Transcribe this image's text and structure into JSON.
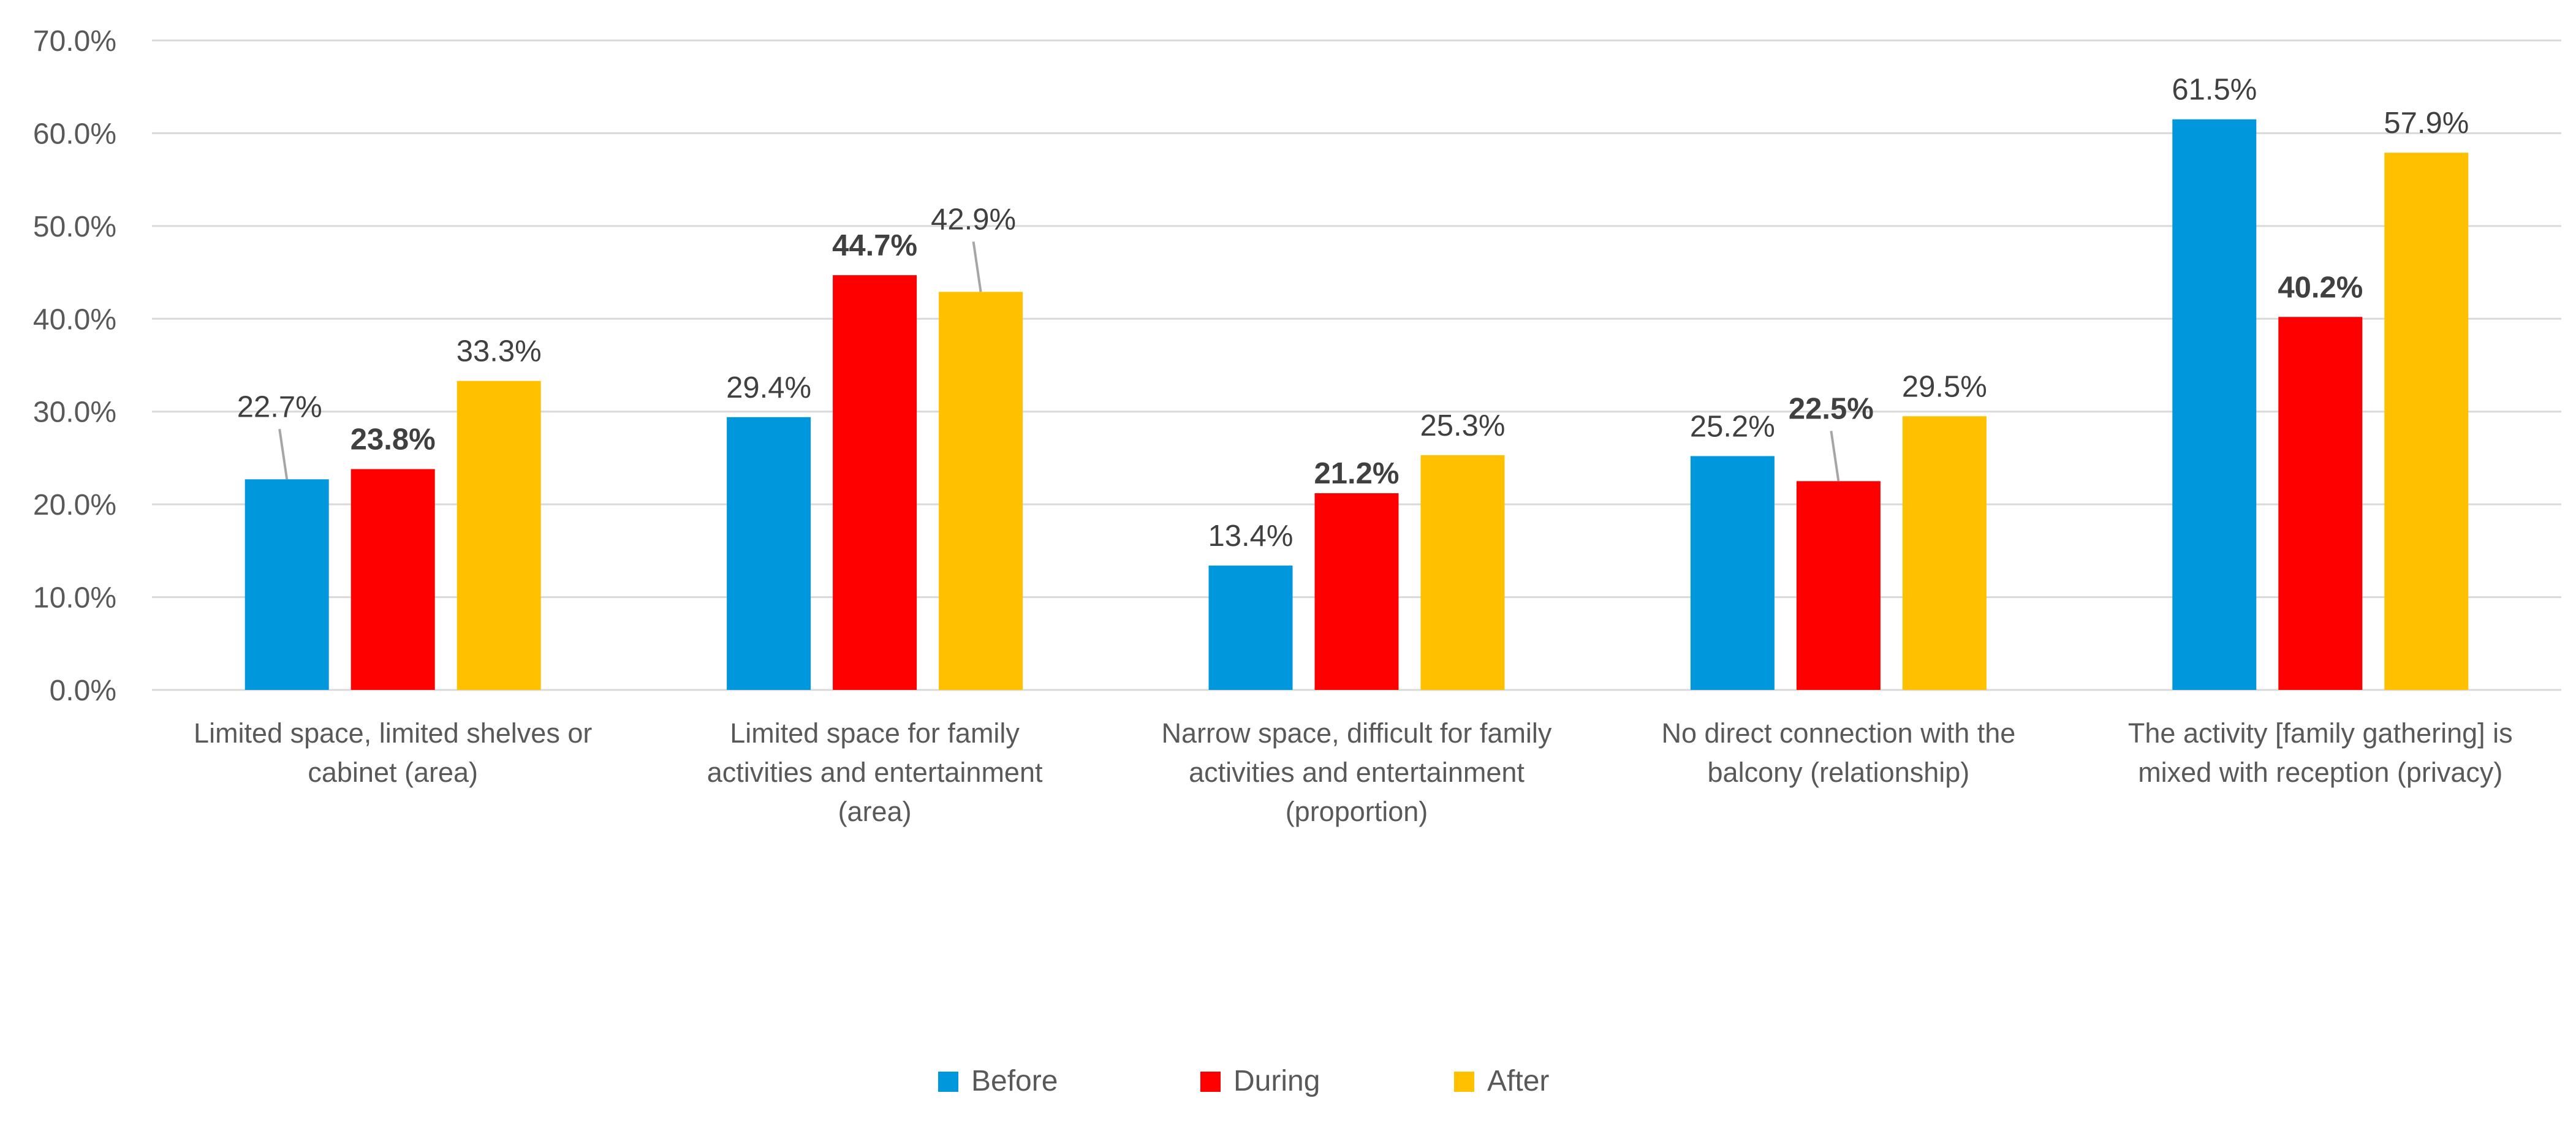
{
  "chart_data": {
    "type": "bar",
    "categories": [
      [
        "Limited space, limited shelves or",
        "cabinet (area)"
      ],
      [
        "Limited space for family",
        "activities and entertainment",
        "(area)"
      ],
      [
        "Narrow space, difficult for family",
        "activities and entertainment",
        "(proportion)"
      ],
      [
        "No direct connection with the",
        "balcony (relationship)"
      ],
      [
        "The activity [family gathering] is",
        "mixed with reception (privacy)"
      ]
    ],
    "series": [
      {
        "name": "Before",
        "color": "#0097DC",
        "values": [
          22.7,
          29.4,
          13.4,
          25.2,
          61.5
        ],
        "labels": [
          "22.7%",
          "29.4%",
          "13.4%",
          "25.2%",
          "61.5%"
        ],
        "label_bold": false
      },
      {
        "name": "During",
        "color": "#FF0000",
        "values": [
          23.8,
          44.7,
          21.2,
          22.5,
          40.2
        ],
        "labels": [
          "23.8%",
          "44.7%",
          "21.2%",
          "22.5%",
          "40.2%"
        ],
        "label_bold": true
      },
      {
        "name": "After",
        "color": "#FFC000",
        "values": [
          33.3,
          42.9,
          25.3,
          29.5,
          57.9
        ],
        "labels": [
          "33.3%",
          "42.9%",
          "25.3%",
          "29.5%",
          "57.9%"
        ],
        "label_bold": false
      }
    ],
    "y_ticks": [
      "0.0%",
      "10.0%",
      "20.0%",
      "30.0%",
      "40.0%",
      "50.0%",
      "60.0%",
      "70.0%"
    ],
    "ylim": [
      0,
      70
    ],
    "grid": true,
    "legend_position": "bottom",
    "gridline_color": "#D9D9D9",
    "leader_line_color": "#A6A6A6"
  }
}
